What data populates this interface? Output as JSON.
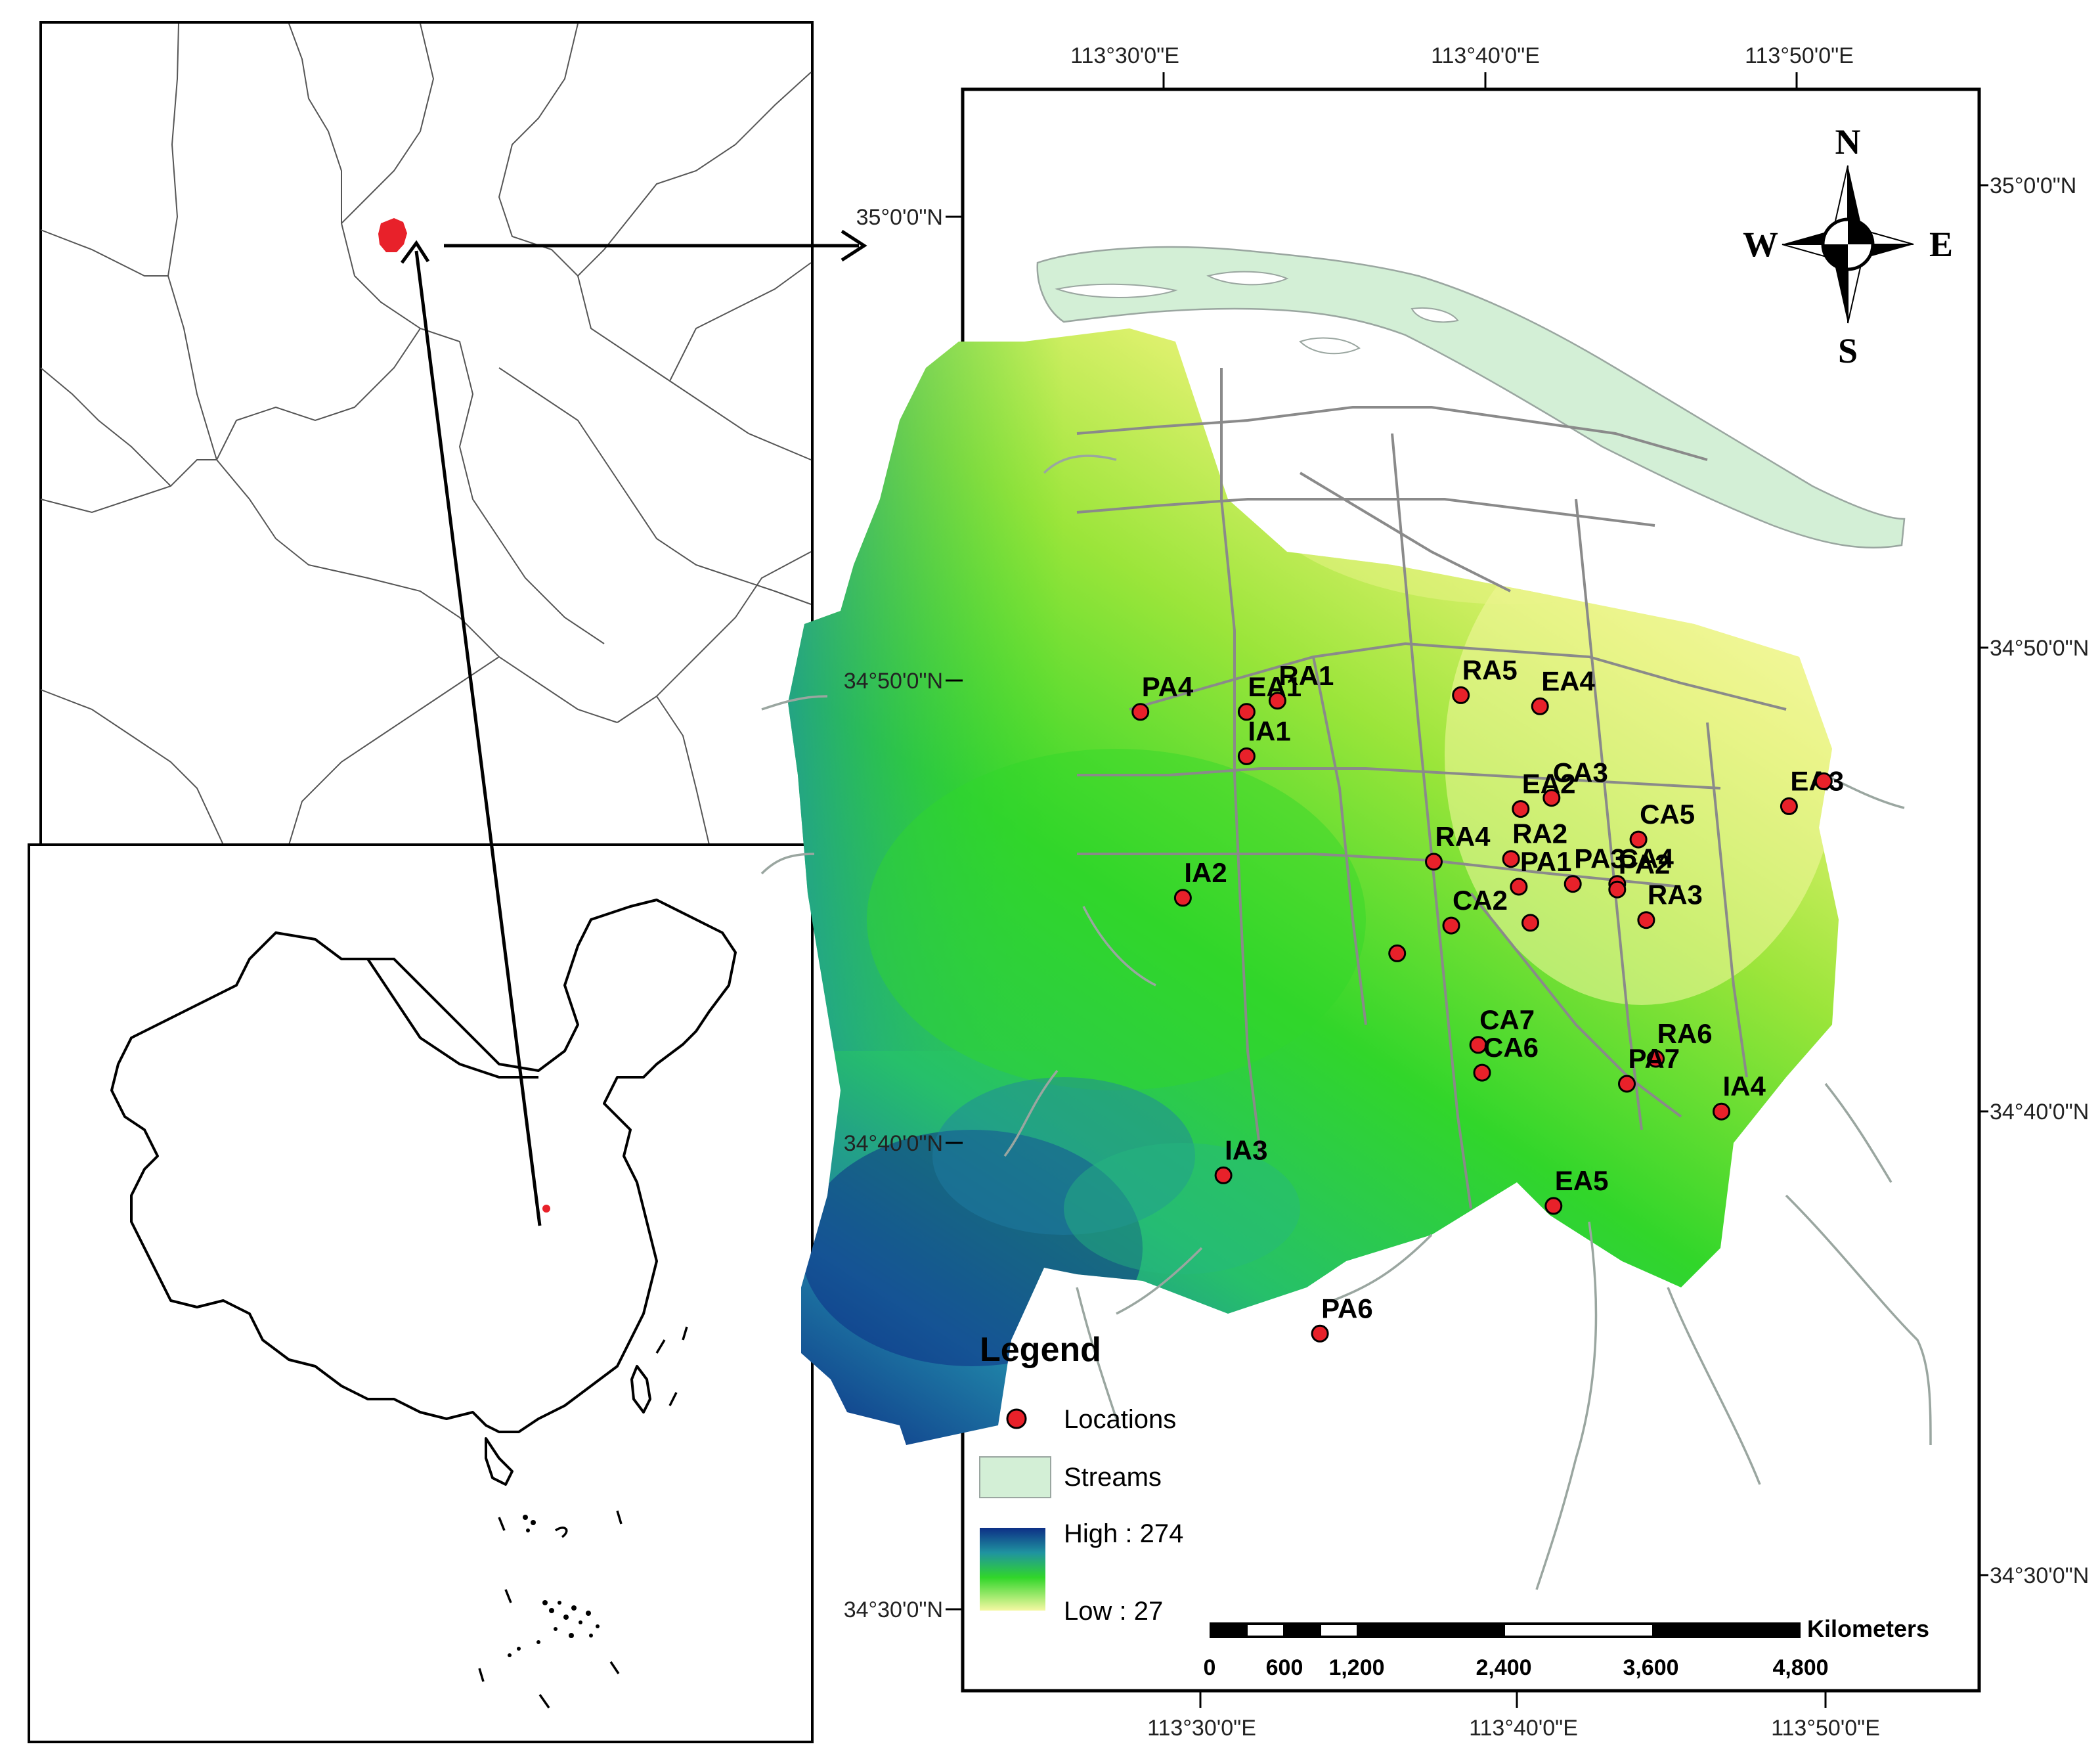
{
  "map": {
    "longitude_labels": [
      "113°30'0\"E",
      "113°40'0\"E",
      "113°50'0\"E"
    ],
    "latitude_labels": [
      "35°0'0\"N",
      "34°50'0\"N",
      "34°40'0\"N",
      "34°30'0\"N"
    ],
    "compass": {
      "n": "N",
      "s": "S",
      "e": "E",
      "w": "W"
    },
    "legend": {
      "title": "Legend",
      "locations": "Locations",
      "streams": "Streams",
      "high": "High : 274",
      "low": "Low : 27"
    },
    "scale_bar": {
      "ticks": [
        "0",
        "600",
        "1,200",
        "2,400",
        "3,600",
        "4,800"
      ],
      "unit": "Kilometers"
    },
    "colors": {
      "location_fill": "#e8212a",
      "stream_fill": "#d3efd6",
      "elevation_high": "#0d2f86",
      "elevation_mid": "#31d62a",
      "elevation_low": "#f6f8a3"
    },
    "locations": [
      {
        "id": "pa4",
        "label": "PA4",
        "lon": 113.488,
        "lat": 34.822
      },
      {
        "id": "ea1",
        "label": "EA1",
        "lon": 113.543,
        "lat": 34.822
      },
      {
        "id": "ra1",
        "label": "RA1",
        "lon": 113.559,
        "lat": 34.826
      },
      {
        "id": "ia1",
        "label": "IA1",
        "lon": 113.543,
        "lat": 34.806
      },
      {
        "id": "ra5",
        "label": "RA5",
        "lon": 113.654,
        "lat": 34.828
      },
      {
        "id": "ea4",
        "label": "EA4",
        "lon": 113.695,
        "lat": 34.824
      },
      {
        "id": "ea2",
        "label": "EA2",
        "lon": 113.685,
        "lat": 34.787
      },
      {
        "id": "ca3",
        "label": "CA3",
        "lon": 113.701,
        "lat": 34.791
      },
      {
        "id": "ca5",
        "label": "CA5",
        "lon": 113.746,
        "lat": 34.776
      },
      {
        "id": "ea3",
        "label": "EA3",
        "lon": 113.824,
        "lat": 34.788
      },
      {
        "id": "ea3b",
        "label": "",
        "lon": 113.842,
        "lat": 34.797
      },
      {
        "id": "ia2",
        "label": "IA2",
        "lon": 113.51,
        "lat": 34.755
      },
      {
        "id": "ra4",
        "label": "RA4",
        "lon": 113.64,
        "lat": 34.768
      },
      {
        "id": "ra2",
        "label": "RA2",
        "lon": 113.68,
        "lat": 34.769
      },
      {
        "id": "ca4",
        "label": "CA4",
        "lon": 113.735,
        "lat": 34.76
      },
      {
        "id": "pa1",
        "label": "PA1",
        "lon": 113.684,
        "lat": 34.759
      },
      {
        "id": "pa3",
        "label": "PA3",
        "lon": 113.712,
        "lat": 34.76
      },
      {
        "id": "pa2",
        "label": "PA2",
        "lon": 113.735,
        "lat": 34.758
      },
      {
        "id": "ra3",
        "label": "RA3",
        "lon": 113.75,
        "lat": 34.747
      },
      {
        "id": "ca2",
        "label": "CA2",
        "lon": 113.649,
        "lat": 34.745
      },
      {
        "id": "ca1",
        "label": "",
        "lon": 113.621,
        "lat": 34.735
      },
      {
        "id": "pa5",
        "label": "",
        "lon": 113.69,
        "lat": 34.746
      },
      {
        "id": "ca7",
        "label": "CA7",
        "lon": 113.663,
        "lat": 34.702
      },
      {
        "id": "ca6",
        "label": "CA6",
        "lon": 113.665,
        "lat": 34.692
      },
      {
        "id": "ra6",
        "label": "RA6",
        "lon": 113.755,
        "lat": 34.697
      },
      {
        "id": "pa7",
        "label": "PA7",
        "lon": 113.74,
        "lat": 34.688
      },
      {
        "id": "ia4",
        "label": "IA4",
        "lon": 113.789,
        "lat": 34.678
      },
      {
        "id": "ia3",
        "label": "IA3",
        "lon": 113.531,
        "lat": 34.655
      },
      {
        "id": "ea5",
        "label": "EA5",
        "lon": 113.702,
        "lat": 34.644
      },
      {
        "id": "pa6",
        "label": "PA6",
        "lon": 113.581,
        "lat": 34.598
      }
    ]
  }
}
